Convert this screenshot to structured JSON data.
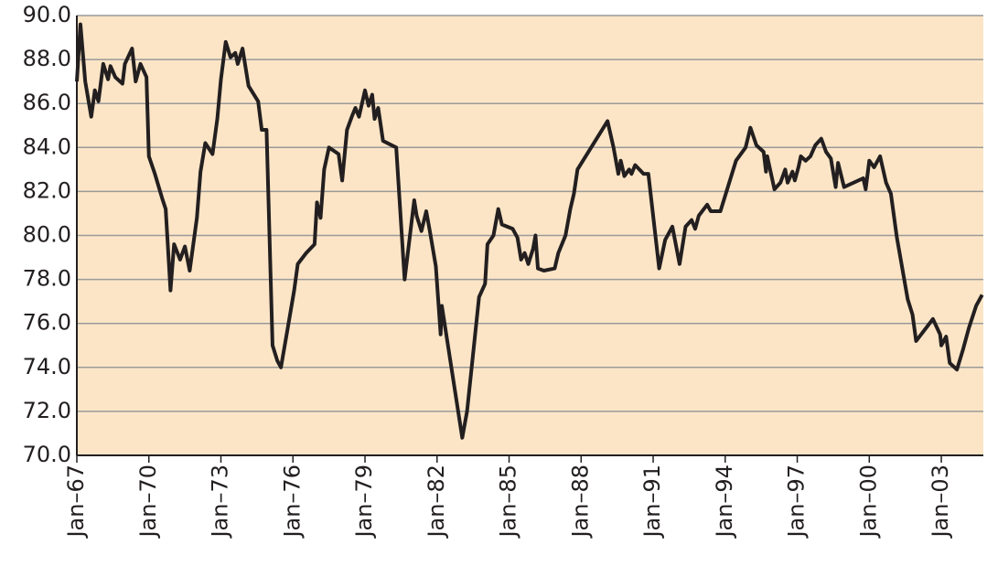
{
  "chart_data": {
    "type": "line",
    "x": [
      1967.0,
      1967.15,
      1967.35,
      1967.6,
      1967.75,
      1967.9,
      1968.1,
      1968.3,
      1968.4,
      1968.6,
      1968.9,
      1969.0,
      1969.3,
      1969.45,
      1969.65,
      1969.9,
      1970.0,
      1970.25,
      1970.55,
      1970.7,
      1970.9,
      1971.05,
      1971.3,
      1971.5,
      1971.7,
      1972.0,
      1972.15,
      1972.35,
      1972.65,
      1972.85,
      1973.0,
      1973.2,
      1973.4,
      1973.6,
      1973.7,
      1973.9,
      1974.15,
      1974.55,
      1974.7,
      1974.9,
      1975.15,
      1975.35,
      1975.5,
      1975.8,
      1976.05,
      1976.2,
      1976.55,
      1976.9,
      1977.0,
      1977.15,
      1977.3,
      1977.5,
      1977.9,
      1978.05,
      1978.25,
      1978.45,
      1978.6,
      1978.75,
      1979.0,
      1979.15,
      1979.3,
      1979.4,
      1979.55,
      1979.75,
      1980.3,
      1980.65,
      1981.05,
      1981.15,
      1981.35,
      1981.55,
      1981.7,
      1981.95,
      1982.15,
      1982.2,
      1983.05,
      1983.25,
      1983.75,
      1984.0,
      1984.1,
      1984.35,
      1984.55,
      1984.7,
      1985.15,
      1985.35,
      1985.5,
      1985.65,
      1985.8,
      1986.0,
      1986.1,
      1986.2,
      1986.45,
      1986.9,
      1987.05,
      1987.35,
      1987.55,
      1987.7,
      1987.85,
      1989.1,
      1989.35,
      1989.55,
      1989.65,
      1989.8,
      1990.0,
      1990.1,
      1990.25,
      1990.6,
      1990.8,
      1991.25,
      1991.5,
      1991.8,
      1992.1,
      1992.35,
      1992.6,
      1992.75,
      1992.9,
      1993.25,
      1993.4,
      1993.8,
      1994.45,
      1994.85,
      1995.05,
      1995.3,
      1995.6,
      1995.7,
      1995.75,
      1996.05,
      1996.3,
      1996.5,
      1996.6,
      1996.8,
      1996.9,
      1997.05,
      1997.15,
      1997.35,
      1997.55,
      1997.75,
      1998.0,
      1998.2,
      1998.4,
      1998.6,
      1998.7,
      1998.95,
      1999.75,
      1999.85,
      2000.0,
      2000.2,
      2000.45,
      2000.7,
      2000.9,
      2001.15,
      2001.6,
      2001.8,
      2001.95,
      2002.65,
      2002.95,
      2003.0,
      2003.2,
      2003.35,
      2003.65,
      2003.9,
      2004.15,
      2004.45,
      2004.7
    ],
    "series": [
      {
        "color": "#231f20",
        "values": [
          87.0,
          89.6,
          87.0,
          85.4,
          86.6,
          86.1,
          87.8,
          87.1,
          87.7,
          87.2,
          86.9,
          87.8,
          88.5,
          87.0,
          87.8,
          87.2,
          83.6,
          82.8,
          81.7,
          81.2,
          77.5,
          79.6,
          78.9,
          79.5,
          78.4,
          80.8,
          82.9,
          84.2,
          83.7,
          85.3,
          87.1,
          88.8,
          88.1,
          88.3,
          87.8,
          88.5,
          86.8,
          86.1,
          84.8,
          84.8,
          75.0,
          74.3,
          74.0,
          75.9,
          77.5,
          78.7,
          79.2,
          79.6,
          81.5,
          80.8,
          83.0,
          84.0,
          83.7,
          82.5,
          84.8,
          85.4,
          85.8,
          85.4,
          86.6,
          85.9,
          86.4,
          85.3,
          85.8,
          84.3,
          84.0,
          78.0,
          81.6,
          80.9,
          80.2,
          81.1,
          80.2,
          78.6,
          75.5,
          76.8,
          70.8,
          72.0,
          77.2,
          77.8,
          79.6,
          80.0,
          81.2,
          80.5,
          80.3,
          79.9,
          78.9,
          79.2,
          78.7,
          79.4,
          80.0,
          78.5,
          78.4,
          78.5,
          79.2,
          80.0,
          81.2,
          81.9,
          83.0,
          85.2,
          84.0,
          82.8,
          83.4,
          82.7,
          83.0,
          82.8,
          83.2,
          82.8,
          82.8,
          78.5,
          79.8,
          80.4,
          78.7,
          80.4,
          80.7,
          80.3,
          80.9,
          81.4,
          81.1,
          81.1,
          83.4,
          84.0,
          84.9,
          84.1,
          83.8,
          82.9,
          83.6,
          82.1,
          82.4,
          83.0,
          82.4,
          82.9,
          82.5,
          83.1,
          83.6,
          83.4,
          83.6,
          84.1,
          84.4,
          83.8,
          83.5,
          82.2,
          83.3,
          82.2,
          82.6,
          82.1,
          83.4,
          83.1,
          83.6,
          82.4,
          81.9,
          79.9,
          77.1,
          76.4,
          75.2,
          76.2,
          75.5,
          75.0,
          75.4,
          74.2,
          73.9,
          74.8,
          75.8,
          76.8,
          77.3
        ]
      }
    ],
    "xlim": [
      1967,
      2004.75
    ],
    "xticks": [
      {
        "value": 1967,
        "label": "Jan–67"
      },
      {
        "value": 1970,
        "label": "Jan–70"
      },
      {
        "value": 1973,
        "label": "Jan–73"
      },
      {
        "value": 1976,
        "label": "Jan–76"
      },
      {
        "value": 1979,
        "label": "Jan–79"
      },
      {
        "value": 1982,
        "label": "Jan–82"
      },
      {
        "value": 1985,
        "label": "Jan–85"
      },
      {
        "value": 1988,
        "label": "Jan–88"
      },
      {
        "value": 1991,
        "label": "Jan–91"
      },
      {
        "value": 1994,
        "label": "Jan–94"
      },
      {
        "value": 1997,
        "label": "Jan–97"
      },
      {
        "value": 2000,
        "label": "Jan–00"
      },
      {
        "value": 2003,
        "label": "Jan–03"
      }
    ],
    "ylim": [
      70,
      90
    ],
    "yticks": [
      {
        "value": 70,
        "label": "70.0"
      },
      {
        "value": 72,
        "label": "72.0"
      },
      {
        "value": 74,
        "label": "74.0"
      },
      {
        "value": 76,
        "label": "76.0"
      },
      {
        "value": 78,
        "label": "78.0"
      },
      {
        "value": 80,
        "label": "80.0"
      },
      {
        "value": 82,
        "label": "82.0"
      },
      {
        "value": 84,
        "label": "84.0"
      },
      {
        "value": 86,
        "label": "86.0"
      },
      {
        "value": 88,
        "label": "88.0"
      },
      {
        "value": 90,
        "label": "90.0"
      }
    ],
    "grid": true,
    "background": "#fce5c6"
  }
}
